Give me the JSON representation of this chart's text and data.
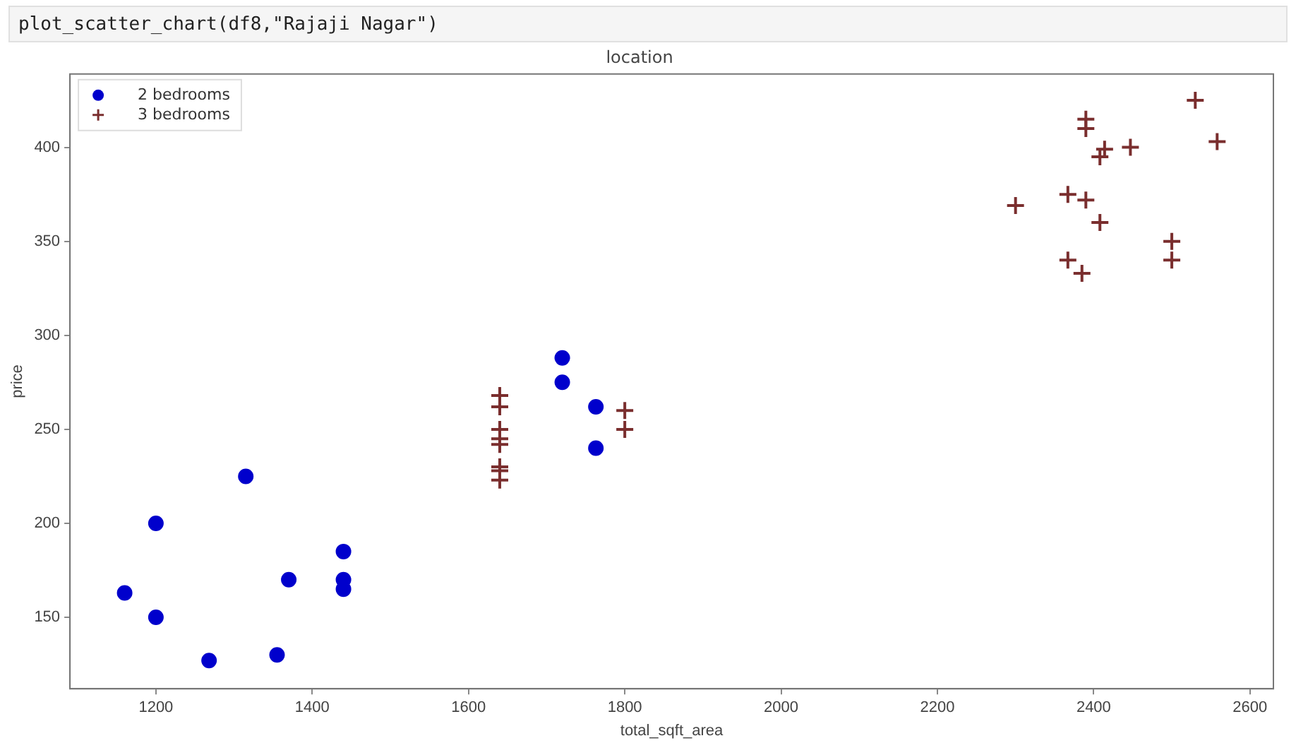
{
  "chart_data": {
    "type": "scatter",
    "title": "location",
    "xlabel": "total_sqft_area",
    "ylabel": "price",
    "annotations": [
      "plot_scatter_chart(df8,\"Rajaji Nagar\")"
    ],
    "xlim": [
      1090,
      2630
    ],
    "xticks": [
      1200,
      1400,
      1600,
      1800,
      2000,
      2200,
      2400,
      2600
    ],
    "ylim": [
      112,
      439
    ],
    "yticks": [
      150,
      200,
      250,
      300,
      350,
      400
    ],
    "grid": false,
    "legend": "top left",
    "series": [
      {
        "name": "2 bedrooms",
        "color": "#0000cc",
        "marker": "circle",
        "x": [
          1160,
          1200,
          1200,
          1268,
          1315,
          1355,
          1370,
          1440,
          1440,
          1440,
          1720,
          1720,
          1763,
          1763
        ],
        "values": [
          163,
          200,
          150,
          127,
          225,
          130,
          170,
          185,
          170,
          165,
          288,
          275,
          262,
          240
        ]
      },
      {
        "name": "3 bedrooms",
        "color": "#7a2e2e",
        "marker": "cross",
        "x": [
          1640,
          1640,
          1640,
          1640,
          1640,
          1640,
          1640,
          1640,
          1800,
          1800,
          2530,
          2390,
          2390,
          2414,
          2408,
          2447,
          2558,
          2300,
          2367,
          2390,
          2408,
          2500,
          2500,
          2367,
          2385
        ],
        "values": [
          268,
          262,
          250,
          245,
          242,
          230,
          228,
          223,
          260,
          250,
          425,
          415,
          410,
          399,
          395,
          400,
          403,
          369,
          375,
          372,
          360,
          350,
          340,
          340,
          333
        ]
      }
    ]
  }
}
